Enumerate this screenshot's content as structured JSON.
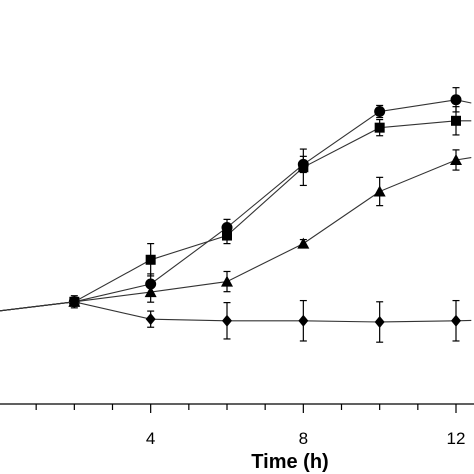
{
  "chart_data": {
    "type": "line",
    "xlabel": "Time (h)",
    "ylabel": "",
    "x_tick_labels": [
      {
        "value": 4,
        "label": "4"
      },
      {
        "value": 8,
        "label": "8"
      },
      {
        "value": 12,
        "label": "12"
      }
    ],
    "x_minor_ticks": [
      0,
      1,
      2,
      3,
      4,
      5,
      6,
      7,
      8,
      9,
      10,
      11,
      12
    ],
    "xlim": [
      0,
      12.4
    ],
    "ylim": [
      0,
      1
    ],
    "grid": false,
    "series": [
      {
        "marker": "circle",
        "x": [
          0,
          2,
          4,
          6,
          8,
          10,
          12,
          12.4
        ],
        "y": [
          0.23,
          0.253,
          0.297,
          0.437,
          0.593,
          0.724,
          0.753,
          0.745
        ],
        "err": [
          0.01,
          0.01,
          0.025,
          0.02,
          0.02,
          0.015,
          0.03,
          0.0
        ]
      },
      {
        "marker": "square",
        "x": [
          0,
          2,
          4,
          6,
          8,
          10,
          12,
          12.4
        ],
        "y": [
          0.23,
          0.253,
          0.357,
          0.417,
          0.586,
          0.684,
          0.701,
          0.701
        ],
        "err": [
          0.01,
          0.01,
          0.04,
          0.02,
          0.045,
          0.02,
          0.035,
          0.0
        ]
      },
      {
        "marker": "triangle",
        "x": [
          0,
          2,
          4,
          6,
          8,
          10,
          12,
          12.4
        ],
        "y": [
          0.23,
          0.253,
          0.277,
          0.303,
          0.397,
          0.526,
          0.604,
          0.61
        ],
        "err": [
          0.01,
          0.01,
          0.025,
          0.025,
          0.01,
          0.035,
          0.025,
          0.0
        ]
      },
      {
        "marker": "diamond",
        "x": [
          0,
          2,
          4,
          6,
          8,
          10,
          12,
          12.4
        ],
        "y": [
          0.23,
          0.253,
          0.21,
          0.206,
          0.206,
          0.203,
          0.206,
          0.207
        ],
        "err": [
          0.01,
          0.015,
          0.02,
          0.045,
          0.05,
          0.05,
          0.05,
          0.0
        ]
      }
    ]
  }
}
